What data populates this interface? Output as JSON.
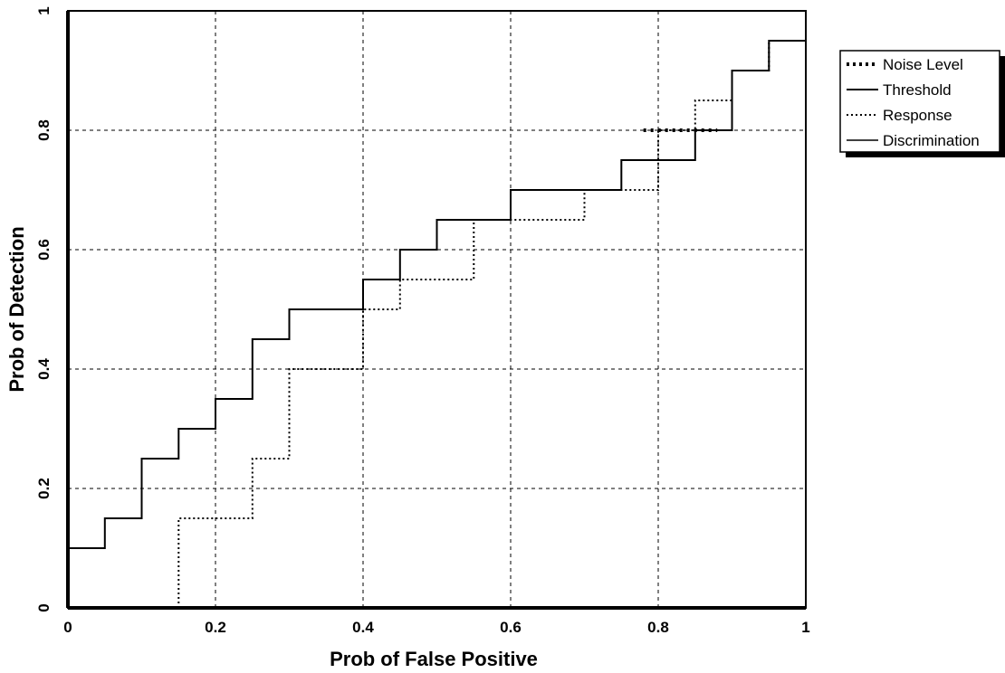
{
  "chart_data": {
    "type": "line",
    "title": "",
    "xlabel": "Prob of False Positive",
    "ylabel": "Prob of Detection",
    "xlim": [
      0,
      1
    ],
    "ylim": [
      0,
      1
    ],
    "xticks": [
      "0",
      "0.2",
      "0.4",
      "0.6",
      "0.8",
      "1"
    ],
    "yticks": [
      "0",
      "0.2",
      "0.4",
      "0.6",
      "0.8",
      "1"
    ],
    "grid": true,
    "legend": {
      "position": "right",
      "entries": [
        "Noise Level",
        "Threshold",
        "Response",
        "Discrimination"
      ]
    },
    "series": [
      {
        "name": "Noise Level",
        "style": "dotted-bold",
        "x": [
          0.78,
          0.88
        ],
        "y": [
          0.8,
          0.8
        ]
      },
      {
        "name": "Threshold",
        "style": "solid",
        "x": [
          0,
          0.05,
          0.05,
          0.1,
          0.1,
          0.15,
          0.15,
          0.2,
          0.2,
          0.25,
          0.25,
          0.3,
          0.3,
          0.4,
          0.4,
          0.45,
          0.45,
          0.5,
          0.5,
          0.6,
          0.6,
          0.75,
          0.75,
          0.85,
          0.85,
          0.9,
          0.9,
          0.95,
          0.95,
          1
        ],
        "y": [
          0.1,
          0.1,
          0.15,
          0.15,
          0.25,
          0.25,
          0.3,
          0.3,
          0.35,
          0.35,
          0.45,
          0.45,
          0.5,
          0.5,
          0.55,
          0.55,
          0.6,
          0.6,
          0.65,
          0.65,
          0.7,
          0.7,
          0.75,
          0.75,
          0.8,
          0.8,
          0.9,
          0.9,
          0.95,
          0.95
        ]
      },
      {
        "name": "Response",
        "style": "dotted",
        "x": [
          0.15,
          0.15,
          0.25,
          0.25,
          0.3,
          0.3,
          0.4,
          0.4,
          0.45,
          0.45,
          0.55,
          0.55,
          0.6,
          0.6,
          0.7,
          0.7,
          0.8,
          0.8,
          0.85,
          0.85,
          0.9,
          0.9,
          0.95,
          0.95,
          1,
          1
        ],
        "y": [
          0,
          0.15,
          0.15,
          0.25,
          0.25,
          0.4,
          0.4,
          0.5,
          0.5,
          0.55,
          0.55,
          0.65,
          0.65,
          0.65,
          0.65,
          0.7,
          0.7,
          0.8,
          0.8,
          0.85,
          0.85,
          0.9,
          0.9,
          0.95,
          0.95,
          1
        ]
      },
      {
        "name": "Discrimination",
        "style": "solid-thin",
        "x": [],
        "y": []
      }
    ]
  }
}
